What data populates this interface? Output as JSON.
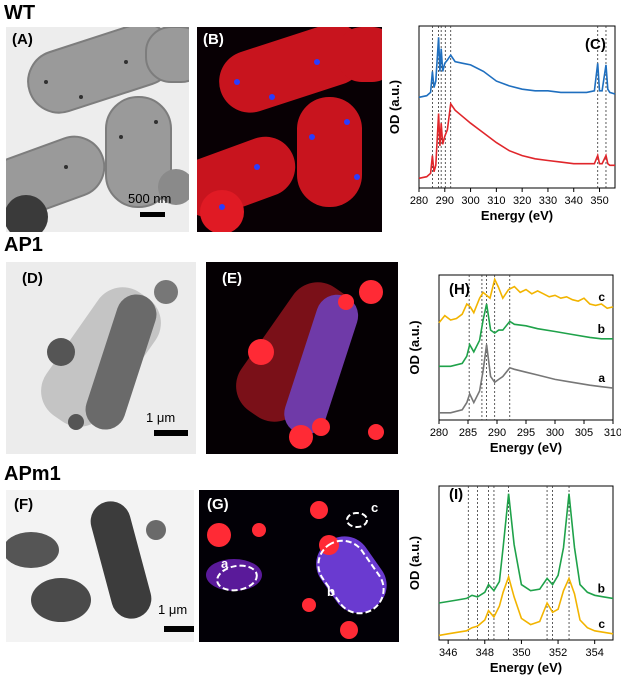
{
  "rows": [
    {
      "title": "WT"
    },
    {
      "title": "AP1"
    },
    {
      "title": "APm1"
    }
  ],
  "panels": {
    "A": {
      "label": "(A)",
      "scalebar": "500 nm"
    },
    "B": {
      "label": "(B)"
    },
    "C": {
      "label": "(C)"
    },
    "D": {
      "label": "(D)",
      "scalebar": "1 μm"
    },
    "E": {
      "label": "(E)"
    },
    "H": {
      "label": "(H)"
    },
    "F": {
      "label": "(F)",
      "scalebar": "1 μm"
    },
    "G": {
      "label": "(G)",
      "regions": [
        "a",
        "b",
        "c"
      ]
    },
    "I": {
      "label": "(I)"
    }
  },
  "colors": {
    "blue": "#1f6fbf",
    "red": "#e0262b",
    "green": "#1fa24a",
    "gold": "#f2b400",
    "gray": "#777777"
  },
  "chart_data": [
    {
      "id": "C",
      "type": "line",
      "xlabel": "Energy (eV)",
      "ylabel": "OD (a.u.)",
      "xlim": [
        280,
        356
      ],
      "xticks": [
        "280",
        "290",
        "300",
        "310",
        "320",
        "330",
        "340",
        "350"
      ],
      "xtick_values": [
        280,
        290,
        300,
        310,
        320,
        330,
        340,
        350
      ],
      "ylim": [
        0,
        1
      ],
      "vlines": [
        285.2,
        287.6,
        288.6,
        290.2,
        292.3,
        349.3,
        352.5
      ],
      "series": [
        {
          "color": "#1f6fbf",
          "x": [
            280,
            283,
            284.5,
            285.2,
            285.8,
            286.5,
            287.6,
            288.1,
            288.6,
            289.2,
            290,
            291,
            292.3,
            294,
            297,
            300,
            305,
            310,
            315,
            320,
            325,
            330,
            335,
            340,
            345,
            348,
            349.3,
            350,
            351,
            352.5,
            353.2,
            354,
            356
          ],
          "y": [
            0.56,
            0.57,
            0.59,
            0.72,
            0.62,
            0.66,
            0.93,
            0.72,
            0.86,
            0.72,
            0.77,
            0.79,
            0.82,
            0.78,
            0.77,
            0.76,
            0.72,
            0.66,
            0.63,
            0.61,
            0.6,
            0.6,
            0.59,
            0.59,
            0.59,
            0.6,
            0.77,
            0.6,
            0.6,
            0.76,
            0.61,
            0.59,
            0.58
          ]
        },
        {
          "color": "#e0262b",
          "x": [
            280,
            283,
            284.5,
            285.2,
            285.8,
            286.5,
            287.6,
            288.1,
            288.6,
            289.2,
            290,
            291,
            292.3,
            294,
            297,
            300,
            305,
            310,
            315,
            320,
            325,
            330,
            335,
            340,
            345,
            348,
            349.3,
            350,
            351,
            352.5,
            353.2,
            354,
            356
          ],
          "y": [
            0.06,
            0.07,
            0.09,
            0.2,
            0.1,
            0.14,
            0.46,
            0.26,
            0.4,
            0.27,
            0.32,
            0.36,
            0.52,
            0.48,
            0.44,
            0.4,
            0.34,
            0.28,
            0.23,
            0.2,
            0.18,
            0.17,
            0.16,
            0.15,
            0.15,
            0.15,
            0.2,
            0.15,
            0.15,
            0.2,
            0.15,
            0.14,
            0.14
          ]
        }
      ]
    },
    {
      "id": "H",
      "type": "line",
      "xlabel": "Energy (eV)",
      "ylabel": "OD (a.u.)",
      "xlim": [
        280,
        310
      ],
      "xticks": [
        "280",
        "285",
        "290",
        "295",
        "300",
        "305",
        "310"
      ],
      "xtick_values": [
        280,
        285,
        290,
        295,
        300,
        305,
        310
      ],
      "ylim": [
        0,
        1
      ],
      "vlines": [
        285.2,
        287.4,
        288.2,
        289.6,
        292.2
      ],
      "series": [
        {
          "name": "c",
          "color": "#f2b400",
          "x": [
            280,
            281,
            282,
            283,
            284,
            284.8,
            285.4,
            286,
            287,
            287.6,
            288.2,
            288.8,
            289.6,
            290.2,
            291,
            292,
            293,
            294,
            295,
            296,
            297,
            298,
            299,
            300,
            301,
            302,
            303,
            304,
            305,
            306,
            307,
            308,
            309,
            310
          ],
          "y": [
            0.67,
            0.72,
            0.69,
            0.7,
            0.73,
            0.8,
            0.78,
            0.74,
            0.84,
            0.88,
            0.86,
            0.84,
            0.97,
            0.92,
            0.84,
            0.9,
            0.92,
            0.88,
            0.9,
            0.87,
            0.89,
            0.87,
            0.85,
            0.86,
            0.84,
            0.85,
            0.83,
            0.82,
            0.84,
            0.8,
            0.79,
            0.8,
            0.77,
            0.78
          ]
        },
        {
          "name": "b",
          "color": "#1fa24a",
          "x": [
            280,
            282,
            284,
            284.8,
            285.3,
            286,
            287,
            287.6,
            288.2,
            288.9,
            289.6,
            290.3,
            291,
            292.2,
            293,
            295,
            297,
            300,
            303,
            306,
            308,
            310
          ],
          "y": [
            0.37,
            0.37,
            0.39,
            0.44,
            0.52,
            0.47,
            0.55,
            0.69,
            0.8,
            0.62,
            0.6,
            0.62,
            0.62,
            0.68,
            0.66,
            0.65,
            0.63,
            0.61,
            0.59,
            0.57,
            0.56,
            0.56
          ]
        },
        {
          "name": "a",
          "color": "#777777",
          "x": [
            280,
            282,
            284,
            284.8,
            285.3,
            286,
            287,
            287.6,
            288.2,
            288.9,
            289.6,
            290.3,
            291,
            292.2,
            293,
            295,
            297,
            300,
            303,
            306,
            308,
            310
          ],
          "y": [
            0.05,
            0.05,
            0.07,
            0.12,
            0.18,
            0.12,
            0.2,
            0.34,
            0.52,
            0.3,
            0.26,
            0.28,
            0.3,
            0.36,
            0.35,
            0.33,
            0.31,
            0.28,
            0.26,
            0.24,
            0.23,
            0.22
          ]
        }
      ]
    },
    {
      "id": "I",
      "type": "line",
      "xlabel": "Energy (eV)",
      "ylabel": "OD (a.u.)",
      "xlim": [
        345.5,
        355
      ],
      "xticks": [
        "346",
        "348",
        "350",
        "352",
        "354"
      ],
      "xtick_values": [
        346,
        348,
        350,
        352,
        354
      ],
      "ylim": [
        0,
        1
      ],
      "vlines": [
        347.1,
        347.6,
        348.2,
        348.5,
        349.3,
        351.4,
        351.7,
        352.6
      ],
      "series": [
        {
          "name": "b",
          "color": "#1fa24a",
          "x": [
            345.5,
            346,
            346.5,
            347,
            347.3,
            347.6,
            348,
            348.2,
            348.5,
            348.8,
            349,
            349.3,
            349.6,
            350,
            350.5,
            351,
            351.4,
            351.7,
            352,
            352.3,
            352.6,
            352.9,
            353.2,
            353.6,
            354,
            354.5,
            355
          ],
          "y": [
            0.24,
            0.25,
            0.26,
            0.27,
            0.29,
            0.28,
            0.31,
            0.36,
            0.32,
            0.38,
            0.6,
            0.95,
            0.62,
            0.36,
            0.32,
            0.33,
            0.4,
            0.36,
            0.42,
            0.6,
            0.95,
            0.6,
            0.36,
            0.31,
            0.29,
            0.28,
            0.27
          ]
        },
        {
          "name": "c",
          "color": "#f2b400",
          "x": [
            345.5,
            346,
            346.5,
            347,
            347.3,
            347.6,
            348,
            348.2,
            348.5,
            348.8,
            349,
            349.3,
            349.6,
            350,
            350.5,
            351,
            351.4,
            351.7,
            352,
            352.3,
            352.6,
            352.9,
            353.2,
            353.6,
            354,
            354.5,
            355
          ],
          "y": [
            0.03,
            0.04,
            0.05,
            0.06,
            0.08,
            0.09,
            0.13,
            0.19,
            0.15,
            0.22,
            0.31,
            0.41,
            0.28,
            0.14,
            0.1,
            0.12,
            0.24,
            0.18,
            0.2,
            0.32,
            0.4,
            0.3,
            0.13,
            0.08,
            0.06,
            0.05,
            0.04
          ]
        }
      ]
    }
  ]
}
